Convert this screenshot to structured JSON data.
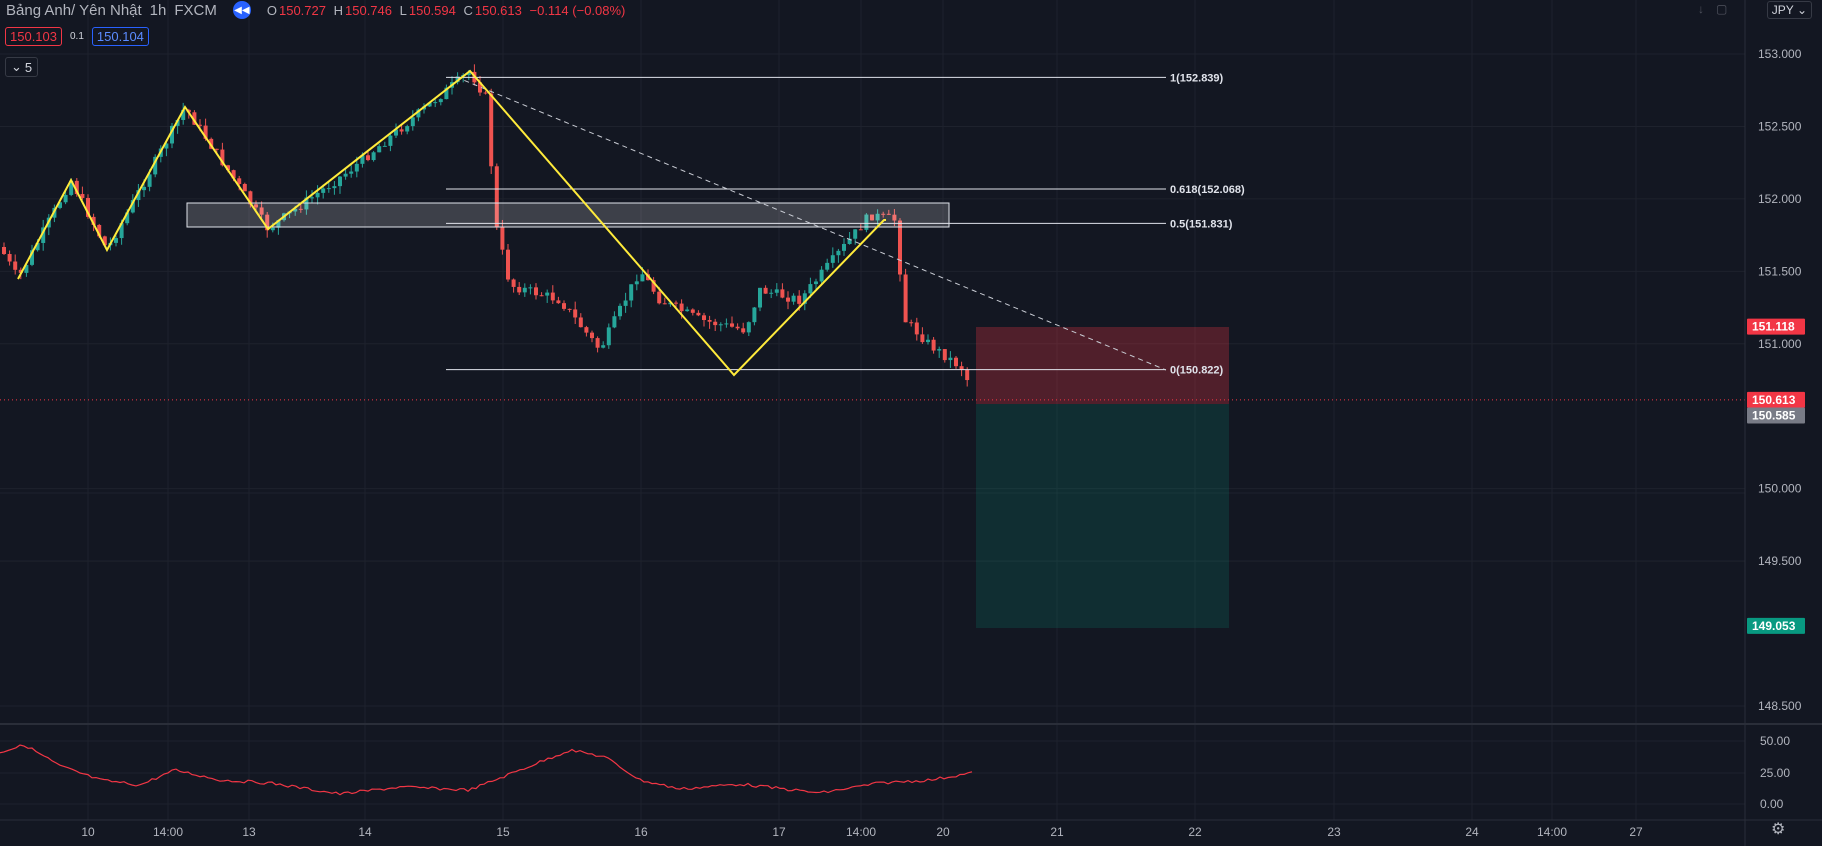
{
  "header": {
    "symbol": "Bảng Anh/ Yên Nhật",
    "interval": "1h",
    "exchange": "FXCM",
    "o_label": "O",
    "o_value": "150.727",
    "h_label": "H",
    "h_value": "150.746",
    "l_label": "L",
    "l_value": "150.594",
    "c_label": "C",
    "c_value": "150.613",
    "change": "−0.114 (−0.08%)"
  },
  "bid_ask": {
    "bid": "150.103",
    "spread": "0.1",
    "ask": "150.104"
  },
  "indicators_toggle": {
    "count": "5"
  },
  "currency_button": "JPY",
  "colors": {
    "background": "#131722",
    "up": "#26a69a",
    "down": "#ef5350",
    "zigzag": "#ffeb3b",
    "rsi": "#f23645"
  },
  "chart_data": {
    "type": "candlestick",
    "price_axis": {
      "ticks": [
        "153.000",
        "152.500",
        "152.000",
        "151.500",
        "151.000",
        "150.000",
        "149.500",
        "148.500"
      ],
      "range": [
        148.35,
        153.25
      ]
    },
    "time_axis": {
      "ticks": [
        "10",
        "14:00",
        "13",
        "14",
        "15",
        "16",
        "17",
        "14:00",
        "20",
        "21",
        "22",
        "23",
        "24",
        "14:00",
        "27"
      ]
    },
    "price_labels": [
      {
        "text": "151.118",
        "price": 151.118,
        "bg": "#f23645"
      },
      {
        "text": "150.613",
        "price": 150.613,
        "bg": "#f23645"
      },
      {
        "text": "150.585",
        "price": 150.505,
        "bg": "#787b86"
      },
      {
        "text": "149.053",
        "price": 149.053,
        "bg": "#089981"
      }
    ],
    "fib_levels": [
      {
        "label": "1(152.839)",
        "price": 152.839
      },
      {
        "label": "0.618(152.068)",
        "price": 152.068
      },
      {
        "label": "0.5(151.831)",
        "price": 151.831
      },
      {
        "label": "0(150.822)",
        "price": 150.822
      }
    ],
    "rsi": {
      "ticks": [
        "50.00",
        "25.00",
        "0.00"
      ]
    }
  }
}
